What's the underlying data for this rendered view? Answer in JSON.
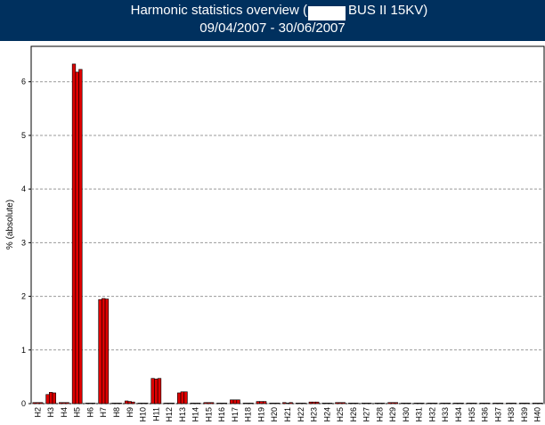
{
  "chart_data": {
    "type": "bar",
    "title": [
      "Harmonic statistics overview (",
      "BUS II 15KV)"
    ],
    "subtitle": "09/04/2007 - 30/06/2007",
    "y_label": "% (absolute)",
    "categories": [
      "H2",
      "H3",
      "H4",
      "H5",
      "H6",
      "H7",
      "H8",
      "H9",
      "H10",
      "H11",
      "H12",
      "H13",
      "H14",
      "H15",
      "H16",
      "H17",
      "H18",
      "H19",
      "H20",
      "H21",
      "H22",
      "H23",
      "H24",
      "H25",
      "H26",
      "H27",
      "H28",
      "H29",
      "H30",
      "H31",
      "H32",
      "H33",
      "H34",
      "H35",
      "H36",
      "H37",
      "H38",
      "H39",
      "H40"
    ],
    "series": [
      {
        "color": "#dd0000",
        "values": [
          0.02,
          0.17,
          0.02,
          6.33,
          0.01,
          1.94,
          0.01,
          0.05,
          0.01,
          0.47,
          0.01,
          0.2,
          0.01,
          0.02,
          0.01,
          0.07,
          0.01,
          0.04,
          0.01,
          0.02,
          0.01,
          0.03,
          0.01,
          0.02,
          0.01,
          0.01,
          0.01,
          0.02,
          0.01,
          0.01,
          0.01,
          0.01,
          0.01,
          0.01,
          0.01,
          0.01,
          0.01,
          0.01,
          0.01
        ]
      },
      {
        "color": "#dd0000",
        "values": [
          0.02,
          0.21,
          0.02,
          6.18,
          0.01,
          1.96,
          0.01,
          0.04,
          0.01,
          0.46,
          0.01,
          0.22,
          0.01,
          0.02,
          0.01,
          0.07,
          0.01,
          0.04,
          0.01,
          0.01,
          0.01,
          0.03,
          0.01,
          0.02,
          0.01,
          0.01,
          0.01,
          0.02,
          0.01,
          0.01,
          0.01,
          0.01,
          0.01,
          0.01,
          0.01,
          0.01,
          0.01,
          0.01,
          0.01
        ]
      },
      {
        "color": "#dd0000",
        "values": [
          0.02,
          0.2,
          0.02,
          6.23,
          0.01,
          1.95,
          0.01,
          0.03,
          0.01,
          0.47,
          0.01,
          0.22,
          0.01,
          0.02,
          0.01,
          0.07,
          0.01,
          0.04,
          0.01,
          0.02,
          0.01,
          0.03,
          0.01,
          0.02,
          0.01,
          0.01,
          0.01,
          0.02,
          0.01,
          0.01,
          0.01,
          0.01,
          0.01,
          0.01,
          0.01,
          0.01,
          0.01,
          0.01,
          0.01
        ]
      }
    ],
    "ylim": [
      0,
      6.66
    ],
    "yticks": [
      0,
      1,
      2,
      3,
      4,
      5,
      6
    ],
    "grid": true
  }
}
